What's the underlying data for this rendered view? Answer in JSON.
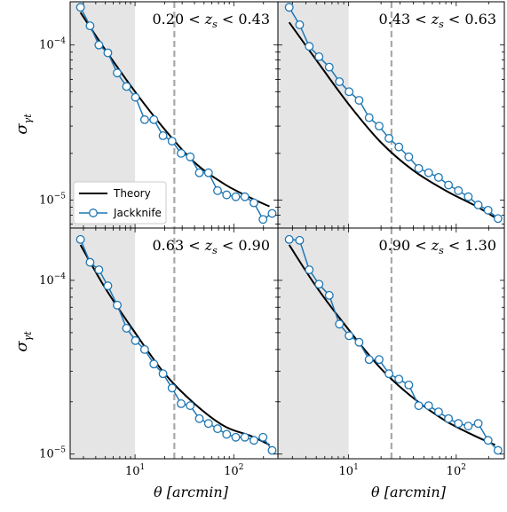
{
  "figure": {
    "xlabel": "θ [arcmin]",
    "ylabel_main": "σ",
    "ylabel_sub": "γt",
    "legend": {
      "placement": "lower-left",
      "panel": 0,
      "entries": [
        "Theory",
        "Jackknife"
      ]
    }
  },
  "colors": {
    "theory": "#000000",
    "jackknife": "#1f77b4",
    "marker_fill": "#ffffff",
    "shade": "#e5e5e5",
    "vline": "#a8a8a8"
  },
  "chart_data": [
    {
      "type": "line",
      "title": "0.20 < z_s < 0.43",
      "title_parts": [
        "0.20",
        "<",
        "z",
        "s",
        "<",
        "0.43"
      ],
      "xscale": "log",
      "yscale": "log",
      "xlim": [
        2.2,
        280
      ],
      "ylim": [
        6.6e-06,
        0.00019
      ],
      "shaded_range": [
        2.2,
        10
      ],
      "vline": 25,
      "xticks": [
        10,
        100
      ],
      "yticks": [
        1e-05,
        0.0001
      ],
      "series": [
        {
          "name": "Theory",
          "kind": "line",
          "x": [
            2.8,
            5,
            10,
            20,
            40,
            80,
            150,
            230
          ],
          "y": [
            0.000162,
            9.3e-05,
            5e-05,
            2.85e-05,
            1.75e-05,
            1.27e-05,
            1.03e-05,
            9.1e-06
          ]
        },
        {
          "name": "Jackknife",
          "kind": "line-marker",
          "x": [
            2.8,
            3.5,
            4.3,
            5.3,
            6.6,
            8.2,
            10.1,
            12.5,
            15.5,
            19.2,
            23.7,
            29.3,
            36.2,
            44.8,
            55.4,
            68.5,
            84.7,
            104.7,
            129.4,
            160.0,
            197.8,
            244.6
          ],
          "y": [
            0.000175,
            0.000133,
            0.0001,
            8.9e-05,
            6.6e-05,
            5.4e-05,
            4.6e-05,
            3.3e-05,
            3.3e-05,
            2.6e-05,
            2.4e-05,
            2e-05,
            1.9e-05,
            1.5e-05,
            1.5e-05,
            1.15e-05,
            1.08e-05,
            1.05e-05,
            1.05e-05,
            9.6e-06,
            7.5e-06,
            8.2e-06
          ]
        }
      ]
    },
    {
      "type": "line",
      "title": "0.43 < z_s < 0.63",
      "title_parts": [
        "0.43",
        "<",
        "z",
        "s",
        "<",
        "0.63"
      ],
      "xscale": "log",
      "yscale": "log",
      "xlim": [
        2.2,
        280
      ],
      "ylim": [
        6.6e-06,
        0.00019
      ],
      "shaded_range": [
        2.2,
        10
      ],
      "vline": 25,
      "xticks": [
        10,
        100
      ],
      "yticks": [
        1e-05,
        0.0001
      ],
      "series": [
        {
          "name": "Theory",
          "kind": "line",
          "x": [
            2.8,
            5,
            10,
            20,
            40,
            80,
            150,
            230
          ],
          "y": [
            0.00014,
            8e-05,
            4.15e-05,
            2.35e-05,
            1.55e-05,
            1.15e-05,
            9.2e-06,
            7.7e-06
          ]
        },
        {
          "name": "Jackknife",
          "kind": "line-marker",
          "x": [
            2.8,
            3.5,
            4.3,
            5.3,
            6.6,
            8.2,
            10.1,
            12.5,
            15.5,
            19.2,
            23.7,
            29.3,
            36.2,
            44.8,
            55.4,
            68.5,
            84.7,
            104.7,
            129.4,
            160.0,
            197.8,
            244.6
          ],
          "y": [
            0.000175,
            0.000135,
            9.8e-05,
            8.4e-05,
            7.2e-05,
            5.8e-05,
            5e-05,
            4.4e-05,
            3.4e-05,
            3e-05,
            2.5e-05,
            2.2e-05,
            1.9e-05,
            1.6e-05,
            1.5e-05,
            1.4e-05,
            1.25e-05,
            1.15e-05,
            1.05e-05,
            9.3e-06,
            8.6e-06,
            7.6e-06
          ]
        }
      ]
    },
    {
      "type": "line",
      "title": "0.63 < z_s < 0.90",
      "title_parts": [
        "0.63",
        "<",
        "z",
        "s",
        "<",
        "0.90"
      ],
      "xscale": "log",
      "yscale": "log",
      "xlim": [
        2.2,
        280
      ],
      "ylim": [
        9.4e-06,
        0.0002
      ],
      "shaded_range": [
        2.2,
        10
      ],
      "vline": 25,
      "xticks": [
        10,
        100
      ],
      "yticks": [
        1e-05,
        0.0001
      ],
      "series": [
        {
          "name": "Theory",
          "kind": "line",
          "x": [
            2.8,
            5,
            10,
            20,
            40,
            80,
            150,
            230
          ],
          "y": [
            0.00016,
            9e-05,
            5e-05,
            2.9e-05,
            1.95e-05,
            1.45e-05,
            1.27e-05,
            1.13e-05
          ]
        },
        {
          "name": "Jackknife",
          "kind": "line-marker",
          "x": [
            2.8,
            3.5,
            4.3,
            5.3,
            6.6,
            8.2,
            10.1,
            12.5,
            15.5,
            19.2,
            23.7,
            29.3,
            36.2,
            44.8,
            55.4,
            68.5,
            84.7,
            104.7,
            129.4,
            160.0,
            197.8,
            244.6
          ],
          "y": [
            0.000172,
            0.000127,
            0.000115,
            9.3e-05,
            7.2e-05,
            5.3e-05,
            4.5e-05,
            4e-05,
            3.3e-05,
            2.9e-05,
            2.4e-05,
            1.95e-05,
            1.9e-05,
            1.6e-05,
            1.5e-05,
            1.4e-05,
            1.3e-05,
            1.25e-05,
            1.25e-05,
            1.2e-05,
            1.25e-05,
            1.05e-05
          ]
        }
      ]
    },
    {
      "type": "line",
      "title": "0.90 < z_s < 1.30",
      "title_parts": [
        "0.90",
        "<",
        "z",
        "s",
        "<",
        "1.30"
      ],
      "xscale": "log",
      "yscale": "log",
      "xlim": [
        2.2,
        280
      ],
      "ylim": [
        9.4e-06,
        0.0002
      ],
      "shaded_range": [
        2.2,
        10
      ],
      "vline": 25,
      "xticks": [
        10,
        100
      ],
      "yticks": [
        1e-05,
        0.0001
      ],
      "series": [
        {
          "name": "Theory",
          "kind": "line",
          "x": [
            2.8,
            5,
            10,
            20,
            40,
            80,
            150,
            230
          ],
          "y": [
            0.00016,
            9.2e-05,
            5.2e-05,
            3.1e-05,
            2.1e-05,
            1.55e-05,
            1.27e-05,
            1.13e-05
          ]
        },
        {
          "name": "Jackknife",
          "kind": "line-marker",
          "x": [
            2.8,
            3.5,
            4.3,
            5.3,
            6.6,
            8.2,
            10.1,
            12.5,
            15.5,
            19.2,
            23.7,
            29.3,
            36.2,
            44.8,
            55.4,
            68.5,
            84.7,
            104.7,
            129.4,
            160.0,
            197.8,
            244.6
          ],
          "y": [
            0.000172,
            0.00017,
            0.000115,
            9.5e-05,
            8.2e-05,
            5.6e-05,
            4.8e-05,
            4.4e-05,
            3.5e-05,
            3.5e-05,
            2.9e-05,
            2.7e-05,
            2.5e-05,
            1.9e-05,
            1.9e-05,
            1.75e-05,
            1.6e-05,
            1.5e-05,
            1.45e-05,
            1.5e-05,
            1.2e-05,
            1.05e-05
          ]
        }
      ]
    }
  ]
}
